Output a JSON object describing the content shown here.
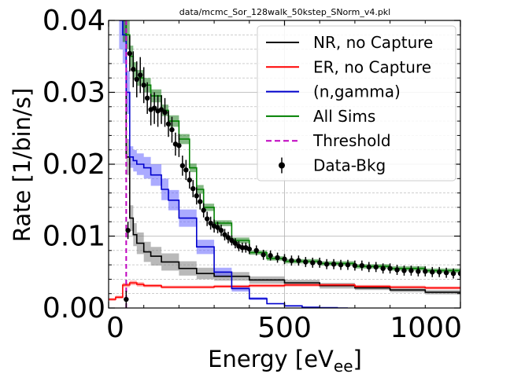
{
  "chart_data": {
    "type": "line",
    "title": "data/mcmc_Sor_128walk_50kstep_SNorm_v4.pkl",
    "xlabel_main": "Energy [eV",
    "xlabel_sub": "ee",
    "xlabel_close": "]",
    "ylabel": "Rate [1/bin/s]",
    "xlim": [
      0,
      1000
    ],
    "ylim": [
      0,
      0.04
    ],
    "x_ticks": [
      0,
      500,
      1000
    ],
    "x_tick_labels": [
      "0",
      "500",
      "1000"
    ],
    "y_ticks": [
      0,
      0.01,
      0.02,
      0.03,
      0.04
    ],
    "y_tick_labels": [
      "0.00",
      "0.01",
      "0.02",
      "0.03",
      "0.04"
    ],
    "grid": true,
    "legend_position": "top-right",
    "legend": [
      {
        "label": "NR, no Capture",
        "color": "#000000",
        "style": "solid"
      },
      {
        "label": "ER, no Capture",
        "color": "#ff0000",
        "style": "solid"
      },
      {
        "label": "(n,gamma)",
        "color": "#0000cc",
        "style": "solid"
      },
      {
        "label": "All Sims",
        "color": "#008000",
        "style": "solid"
      },
      {
        "label": "Threshold",
        "color": "#bf00bf",
        "style": "dashed"
      },
      {
        "label": "Data-Bkg",
        "color": "#000000",
        "style": "errorbar"
      }
    ],
    "threshold_x": 50,
    "series": [
      {
        "name": "NR, no Capture",
        "color": "#000000",
        "band_color": "#808080",
        "x": [
          40,
          50,
          60,
          70,
          80,
          100,
          120,
          150,
          200,
          250,
          300,
          400,
          500,
          600,
          700,
          800,
          900,
          1000
        ],
        "y": [
          0.04,
          0.021,
          0.0125,
          0.0102,
          0.009,
          0.0078,
          0.0072,
          0.0064,
          0.0055,
          0.0048,
          0.0044,
          0.0039,
          0.0035,
          0.0031,
          0.0028,
          0.0025,
          0.0022,
          0.002
        ],
        "band_halfwidth": [
          0.003,
          0.0025,
          0.0018,
          0.0016,
          0.0015,
          0.0014,
          0.0013,
          0.0012,
          0.001,
          0.0008,
          0.0006,
          0.0005,
          0.0004,
          0.0004,
          0.0003,
          0.0003,
          0.0003,
          0.0003
        ]
      },
      {
        "name": "ER, no Capture",
        "color": "#ff0000",
        "band_color": "#ff6666",
        "x": [
          0,
          20,
          40,
          60,
          80,
          100,
          150,
          200,
          300,
          400,
          500,
          600,
          700,
          800,
          900,
          1000
        ],
        "y": [
          0.0012,
          0.0015,
          0.0032,
          0.0035,
          0.0033,
          0.0031,
          0.0029,
          0.0029,
          0.003,
          0.0031,
          0.0032,
          0.0032,
          0.003,
          0.0029,
          0.0028,
          0.0028
        ],
        "band_halfwidth": [
          0.0002,
          0.0002,
          0.0003,
          0.0003,
          0.0003,
          0.0002,
          0.0002,
          0.0002,
          0.0002,
          0.0002,
          0.0002,
          0.0002,
          0.0002,
          0.0002,
          0.0002,
          0.0002
        ]
      },
      {
        "name": "(n,gamma)",
        "color": "#0000cc",
        "band_color": "#6666ff",
        "x": [
          30,
          40,
          50,
          60,
          70,
          80,
          100,
          120,
          150,
          170,
          200,
          250,
          300,
          350,
          400,
          450,
          500,
          550,
          600,
          650,
          680
        ],
        "y": [
          0.04,
          0.038,
          0.03,
          0.021,
          0.0205,
          0.02,
          0.0195,
          0.0185,
          0.0165,
          0.015,
          0.0125,
          0.0085,
          0.005,
          0.0027,
          0.0013,
          0.0006,
          0.0003,
          0.0001,
          5e-05,
          0.0,
          0.0
        ],
        "band_halfwidth": [
          0.004,
          0.004,
          0.003,
          0.0015,
          0.0015,
          0.0015,
          0.0015,
          0.0015,
          0.0015,
          0.0014,
          0.0012,
          0.001,
          0.0006,
          0.0004,
          0.0002,
          0.0001,
          0.0001,
          0.0,
          0.0,
          0.0,
          0.0
        ]
      },
      {
        "name": "All Sims",
        "color": "#008000",
        "band_color": "#208020",
        "x": [
          40,
          50,
          60,
          70,
          80,
          100,
          120,
          150,
          170,
          200,
          230,
          250,
          270,
          300,
          350,
          400,
          450,
          500,
          600,
          700,
          800,
          900,
          1000
        ],
        "y": [
          0.04,
          0.038,
          0.035,
          0.033,
          0.032,
          0.031,
          0.0295,
          0.0275,
          0.026,
          0.0235,
          0.0195,
          0.0165,
          0.014,
          0.0118,
          0.0094,
          0.0077,
          0.0069,
          0.0065,
          0.0062,
          0.0058,
          0.0055,
          0.0052,
          0.005
        ],
        "band_halfwidth": [
          0.003,
          0.002,
          0.0015,
          0.0012,
          0.0011,
          0.001,
          0.0009,
          0.0008,
          0.0008,
          0.0007,
          0.0006,
          0.0006,
          0.0005,
          0.0004,
          0.0004,
          0.0003,
          0.0003,
          0.0003,
          0.0003,
          0.0003,
          0.0003,
          0.0003,
          0.0003
        ]
      }
    ],
    "data_points": {
      "name": "Data-Bkg",
      "color": "#000000",
      "x": [
        50,
        55,
        60,
        70,
        80,
        90,
        100,
        110,
        120,
        130,
        140,
        150,
        160,
        170,
        180,
        190,
        200,
        210,
        220,
        230,
        240,
        250,
        260,
        270,
        280,
        290,
        300,
        310,
        320,
        330,
        340,
        350,
        360,
        370,
        380,
        390,
        400,
        420,
        440,
        460,
        480,
        500,
        520,
        540,
        560,
        580,
        600,
        620,
        640,
        660,
        680,
        700,
        720,
        740,
        760,
        780,
        800,
        820,
        840,
        860,
        880,
        900,
        920,
        940,
        960,
        980,
        1000
      ],
      "y": [
        0.0012,
        0.0108,
        0.0354,
        0.0332,
        0.0318,
        0.0324,
        0.031,
        0.0292,
        0.0276,
        0.0278,
        0.0274,
        0.0276,
        0.0272,
        0.0256,
        0.0248,
        0.0228,
        0.0226,
        0.0198,
        0.0192,
        0.0178,
        0.0166,
        0.0156,
        0.0148,
        0.0136,
        0.0124,
        0.0118,
        0.0114,
        0.0112,
        0.0108,
        0.0102,
        0.0098,
        0.0094,
        0.009,
        0.0086,
        0.0084,
        0.0084,
        0.0082,
        0.008,
        0.0074,
        0.0073,
        0.007,
        0.0068,
        0.0066,
        0.0066,
        0.0064,
        0.0063,
        0.0063,
        0.0061,
        0.0061,
        0.006,
        0.006,
        0.0059,
        0.0059,
        0.0057,
        0.0057,
        0.0055,
        0.0055,
        0.0053,
        0.0052,
        0.0052,
        0.0051,
        0.0051,
        0.005,
        0.005,
        0.0049,
        0.0048,
        0.0048
      ],
      "yerr": [
        0.0012,
        0.0012,
        0.0025,
        0.0025,
        0.0025,
        0.0025,
        0.0025,
        0.0022,
        0.0022,
        0.0022,
        0.0022,
        0.002,
        0.002,
        0.0018,
        0.0018,
        0.0016,
        0.0016,
        0.0014,
        0.0014,
        0.0012,
        0.0012,
        0.0012,
        0.0011,
        0.001,
        0.001,
        0.0009,
        0.0009,
        0.0008,
        0.0008,
        0.0008,
        0.0008,
        0.0007,
        0.0007,
        0.0007,
        0.0007,
        0.0007,
        0.0007,
        0.0007,
        0.0007,
        0.0007,
        0.0007,
        0.0007,
        0.0007,
        0.0007,
        0.0007,
        0.0007,
        0.0007,
        0.0007,
        0.0007,
        0.0007,
        0.0007,
        0.0007,
        0.0007,
        0.0007,
        0.0007,
        0.0007,
        0.0007,
        0.0007,
        0.0007,
        0.0007,
        0.0007,
        0.0007,
        0.0007,
        0.0007,
        0.0007,
        0.0007,
        0.0007
      ]
    }
  }
}
